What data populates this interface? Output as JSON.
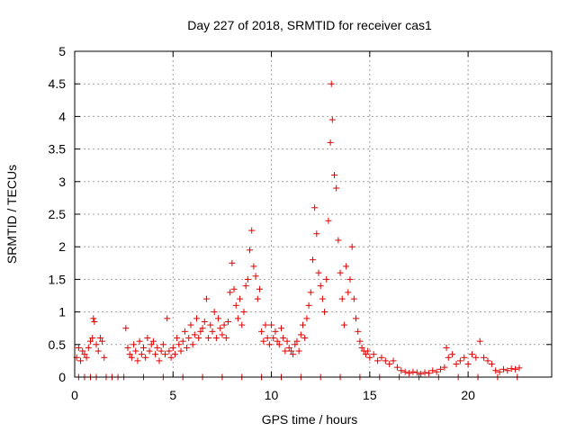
{
  "chart_data": {
    "type": "scatter",
    "title": "Day 227 of 2018, SRMTID for receiver cas1",
    "xlabel": "GPS time / hours",
    "ylabel": "SRMTID / TECUs",
    "xlim": [
      0,
      24.25
    ],
    "ylim": [
      0,
      5
    ],
    "x_ticks": [
      0,
      5,
      10,
      15,
      20
    ],
    "x_tick_labels": [
      "0",
      "5",
      "10",
      "15",
      "20"
    ],
    "y_ticks": [
      0,
      0.5,
      1,
      1.5,
      2,
      2.5,
      3,
      3.5,
      4,
      4.5,
      5
    ],
    "y_tick_labels": [
      "0",
      "0.5",
      "1",
      "1.5",
      "2",
      "2.5",
      "3",
      "3.5",
      "4",
      "4.5",
      "5"
    ],
    "grid": true,
    "marker": "+",
    "color": "#e00000",
    "series": [
      {
        "name": "cas1",
        "points": [
          [
            0.1,
            0.3
          ],
          [
            0.2,
            0.45
          ],
          [
            0.3,
            0.25
          ],
          [
            0.4,
            0.4
          ],
          [
            0.5,
            0.35
          ],
          [
            0.6,
            0.3
          ],
          [
            0.7,
            0.45
          ],
          [
            0.8,
            0.55
          ],
          [
            0.9,
            0.6
          ],
          [
            0.95,
            0.9
          ],
          [
            1.0,
            0.85
          ],
          [
            1.1,
            0.5
          ],
          [
            1.2,
            0.4
          ],
          [
            1.3,
            0.6
          ],
          [
            1.4,
            0.55
          ],
          [
            1.5,
            0.3
          ],
          [
            2.6,
            0.75
          ],
          [
            2.7,
            0.45
          ],
          [
            2.8,
            0.35
          ],
          [
            2.9,
            0.3
          ],
          [
            3.0,
            0.5
          ],
          [
            3.1,
            0.4
          ],
          [
            3.2,
            0.25
          ],
          [
            3.3,
            0.55
          ],
          [
            3.4,
            0.35
          ],
          [
            3.5,
            0.45
          ],
          [
            3.6,
            0.3
          ],
          [
            3.7,
            0.6
          ],
          [
            3.8,
            0.4
          ],
          [
            3.9,
            0.5
          ],
          [
            4.0,
            0.55
          ],
          [
            4.1,
            0.35
          ],
          [
            4.2,
            0.45
          ],
          [
            4.3,
            0.25
          ],
          [
            4.4,
            0.4
          ],
          [
            4.5,
            0.5
          ],
          [
            4.6,
            0.35
          ],
          [
            4.7,
            0.9
          ],
          [
            4.8,
            0.4
          ],
          [
            4.9,
            0.3
          ],
          [
            5.0,
            0.45
          ],
          [
            5.1,
            0.35
          ],
          [
            5.2,
            0.6
          ],
          [
            5.3,
            0.5
          ],
          [
            5.4,
            0.4
          ],
          [
            5.5,
            0.55
          ],
          [
            5.6,
            0.7
          ],
          [
            5.7,
            0.45
          ],
          [
            5.8,
            0.6
          ],
          [
            5.9,
            0.8
          ],
          [
            6.0,
            0.5
          ],
          [
            6.1,
            0.65
          ],
          [
            6.2,
            0.9
          ],
          [
            6.3,
            0.6
          ],
          [
            6.4,
            0.7
          ],
          [
            6.5,
            0.75
          ],
          [
            6.6,
            0.85
          ],
          [
            6.7,
            1.2
          ],
          [
            6.8,
            0.6
          ],
          [
            6.9,
            0.8
          ],
          [
            7.0,
            0.7
          ],
          [
            7.1,
            1.0
          ],
          [
            7.2,
            0.6
          ],
          [
            7.3,
            0.9
          ],
          [
            7.4,
            0.75
          ],
          [
            7.5,
            0.65
          ],
          [
            7.6,
            0.8
          ],
          [
            7.7,
            0.6
          ],
          [
            7.8,
            0.85
          ],
          [
            7.9,
            1.3
          ],
          [
            8.0,
            1.75
          ],
          [
            8.1,
            1.35
          ],
          [
            8.2,
            1.1
          ],
          [
            8.3,
            0.9
          ],
          [
            8.4,
            1.2
          ],
          [
            8.5,
            0.8
          ],
          [
            8.6,
            1.0
          ],
          [
            8.7,
            1.4
          ],
          [
            8.8,
            1.5
          ],
          [
            8.9,
            1.95
          ],
          [
            9.0,
            2.25
          ],
          [
            9.1,
            1.7
          ],
          [
            9.2,
            1.55
          ],
          [
            9.3,
            1.2
          ],
          [
            9.4,
            1.35
          ],
          [
            9.5,
            0.7
          ],
          [
            9.6,
            0.55
          ],
          [
            9.7,
            0.8
          ],
          [
            9.8,
            0.6
          ],
          [
            9.9,
            0.5
          ],
          [
            10.0,
            0.8
          ],
          [
            10.1,
            0.6
          ],
          [
            10.2,
            0.7
          ],
          [
            10.3,
            0.55
          ],
          [
            10.4,
            0.5
          ],
          [
            10.5,
            0.75
          ],
          [
            10.6,
            0.6
          ],
          [
            10.7,
            0.4
          ],
          [
            10.8,
            0.55
          ],
          [
            10.9,
            0.45
          ],
          [
            11.0,
            0.4
          ],
          [
            11.1,
            0.35
          ],
          [
            11.2,
            0.5
          ],
          [
            11.3,
            0.55
          ],
          [
            11.4,
            0.4
          ],
          [
            11.5,
            0.65
          ],
          [
            11.6,
            0.8
          ],
          [
            11.7,
            0.6
          ],
          [
            11.8,
            0.9
          ],
          [
            11.9,
            1.1
          ],
          [
            12.0,
            1.3
          ],
          [
            12.1,
            1.8
          ],
          [
            12.2,
            2.6
          ],
          [
            12.3,
            2.2
          ],
          [
            12.4,
            1.6
          ],
          [
            12.5,
            1.4
          ],
          [
            12.6,
            1.2
          ],
          [
            12.7,
            1.0
          ],
          [
            12.8,
            1.5
          ],
          [
            12.9,
            2.4
          ],
          [
            13.0,
            3.6
          ],
          [
            13.05,
            4.5
          ],
          [
            13.1,
            3.95
          ],
          [
            13.2,
            3.1
          ],
          [
            13.3,
            2.9
          ],
          [
            13.4,
            2.1
          ],
          [
            13.5,
            1.6
          ],
          [
            13.6,
            1.2
          ],
          [
            13.7,
            0.8
          ],
          [
            13.8,
            1.7
          ],
          [
            13.9,
            1.3
          ],
          [
            14.0,
            1.5
          ],
          [
            14.1,
            2.0
          ],
          [
            14.2,
            1.2
          ],
          [
            14.3,
            0.9
          ],
          [
            14.4,
            0.7
          ],
          [
            14.5,
            0.55
          ],
          [
            14.6,
            0.45
          ],
          [
            14.7,
            0.4
          ],
          [
            14.8,
            0.35
          ],
          [
            14.9,
            0.4
          ],
          [
            15.0,
            0.3
          ],
          [
            15.2,
            0.35
          ],
          [
            15.4,
            0.25
          ],
          [
            15.6,
            0.3
          ],
          [
            15.8,
            0.25
          ],
          [
            16.0,
            0.2
          ],
          [
            16.2,
            0.25
          ],
          [
            16.4,
            0.15
          ],
          [
            16.6,
            0.1
          ],
          [
            16.8,
            0.08
          ],
          [
            17.0,
            0.06
          ],
          [
            17.2,
            0.08
          ],
          [
            17.4,
            0.07
          ],
          [
            17.6,
            0.05
          ],
          [
            17.8,
            0.07
          ],
          [
            18.0,
            0.06
          ],
          [
            18.2,
            0.1
          ],
          [
            18.4,
            0.08
          ],
          [
            18.6,
            0.12
          ],
          [
            18.8,
            0.15
          ],
          [
            18.9,
            0.45
          ],
          [
            19.0,
            0.3
          ],
          [
            19.2,
            0.35
          ],
          [
            19.4,
            0.2
          ],
          [
            19.6,
            0.25
          ],
          [
            19.8,
            0.3
          ],
          [
            20.0,
            0.2
          ],
          [
            20.2,
            0.35
          ],
          [
            20.4,
            0.3
          ],
          [
            20.6,
            0.55
          ],
          [
            20.8,
            0.3
          ],
          [
            21.0,
            0.25
          ],
          [
            21.2,
            0.2
          ],
          [
            21.4,
            0.1
          ],
          [
            21.6,
            0.08
          ],
          [
            21.8,
            0.12
          ],
          [
            22.0,
            0.1
          ],
          [
            22.2,
            0.13
          ],
          [
            22.4,
            0.12
          ],
          [
            22.6,
            0.14
          ],
          [
            0.2,
            0.0
          ],
          [
            0.5,
            0.0
          ],
          [
            0.8,
            0.0
          ],
          [
            1.1,
            0.0
          ],
          [
            1.6,
            0.0
          ],
          [
            1.9,
            0.0
          ],
          [
            2.2,
            0.0
          ],
          [
            2.5,
            0.0
          ],
          [
            3.5,
            0.0
          ],
          [
            4.5,
            0.0
          ],
          [
            5.5,
            0.0
          ],
          [
            6.5,
            0.0
          ],
          [
            7.5,
            0.0
          ],
          [
            8.5,
            0.0
          ],
          [
            9.5,
            0.0
          ],
          [
            10.5,
            0.0
          ],
          [
            11.5,
            0.0
          ],
          [
            12.5,
            0.0
          ],
          [
            13.5,
            0.0
          ],
          [
            14.5,
            0.0
          ],
          [
            15.5,
            0.0
          ],
          [
            16.5,
            0.0
          ],
          [
            17.5,
            0.0
          ],
          [
            18.5,
            0.0
          ],
          [
            19.5,
            0.0
          ],
          [
            20.5,
            0.0
          ],
          [
            21.5,
            0.0
          ],
          [
            22.5,
            0.0
          ]
        ]
      }
    ]
  }
}
